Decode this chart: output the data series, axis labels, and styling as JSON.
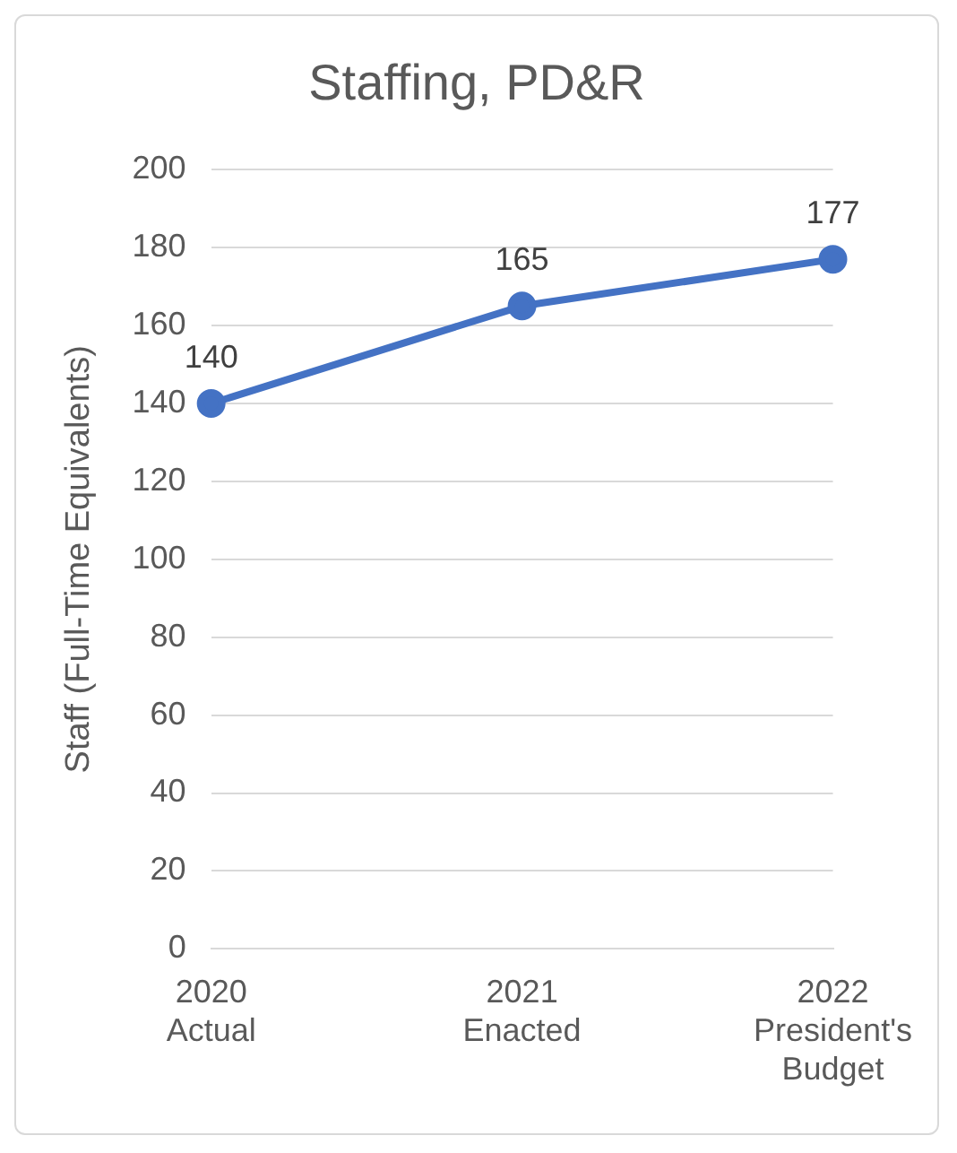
{
  "chart_data": {
    "type": "line",
    "title": "Staffing, PD&R",
    "ylabel": "Staff (Full-Time Equivalents)",
    "categories": [
      "2020 Actual",
      "2021 Enacted",
      "2022 President's Budget"
    ],
    "series": [
      {
        "color": "#4472c4",
        "values": [
          140,
          165,
          177
        ]
      }
    ],
    "ylim": [
      0,
      200
    ],
    "yticks": [
      0,
      20,
      40,
      60,
      80,
      100,
      120,
      140,
      160,
      180,
      200
    ],
    "grid": "y",
    "legend": false,
    "marker": "circle",
    "line_style": "solid",
    "data_labels": true
  }
}
